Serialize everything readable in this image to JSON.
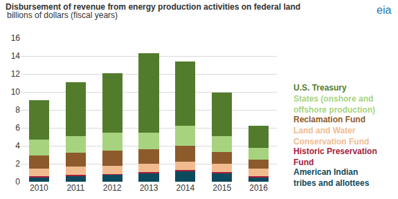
{
  "chart_data": {
    "type": "bar",
    "stacked": true,
    "grid": true,
    "title": "Disbursement of revenue from energy production activities on federal land",
    "subtitle": "billions of dollars (fiscal years)",
    "annotations": [
      "eia"
    ],
    "categories": [
      "2010",
      "2011",
      "2012",
      "2013",
      "2014",
      "2015",
      "2016"
    ],
    "ylim": [
      0,
      16
    ],
    "yticks": [
      0,
      2,
      4,
      6,
      8,
      10,
      12,
      14,
      16
    ],
    "legend": "right",
    "series": [
      {
        "name": "American Indian tribes and allottees",
        "color": "#0e4a5e",
        "values": [
          0.5,
          0.6,
          0.75,
          0.95,
          1.15,
          0.9,
          0.5
        ]
      },
      {
        "name": "Historic Preservation Fund",
        "color": "#a3203c",
        "values": [
          0.15,
          0.15,
          0.1,
          0.1,
          0.15,
          0.15,
          0.1
        ]
      },
      {
        "name": "Land and Water Conservation Fund",
        "color": "#f2bb8f",
        "values": [
          0.85,
          0.95,
          0.95,
          0.95,
          0.9,
          0.95,
          0.9
        ]
      },
      {
        "name": "Reclamation Fund",
        "color": "#8c5a2b",
        "values": [
          1.4,
          1.5,
          1.7,
          1.6,
          1.8,
          1.3,
          1.0
        ]
      },
      {
        "name": "States (onshore and offshore production)",
        "color": "#a8d37e",
        "values": [
          1.8,
          1.9,
          2.0,
          1.9,
          2.2,
          1.8,
          1.3
        ]
      },
      {
        "name": "U.S. Treasury",
        "color": "#527c2c",
        "values": [
          4.4,
          6.0,
          6.6,
          8.8,
          7.2,
          4.8,
          2.4
        ]
      }
    ]
  }
}
